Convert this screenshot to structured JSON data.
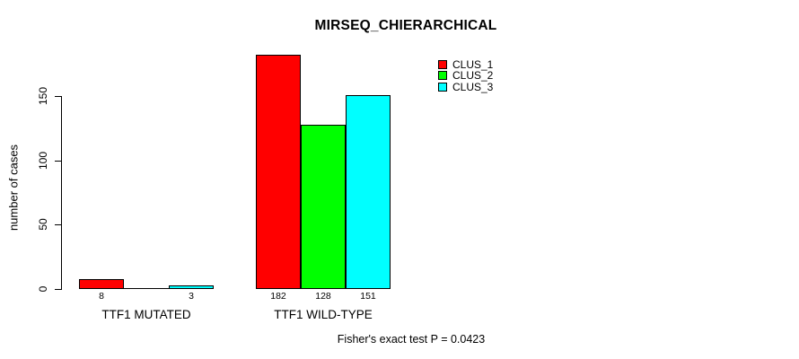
{
  "title": "MIRSEQ_CHIERARCHICAL",
  "y_axis": {
    "label": "number of cases"
  },
  "footer_note": "Fisher's exact test P = 0.0423",
  "colors": {
    "background": "#FFFFFF",
    "axis": "#000000",
    "text": "#000000",
    "clus_1": "#FF0000",
    "clus_2": "#00FF00",
    "clus_3": "#00FFFF"
  },
  "legend": {
    "items": [
      {
        "label": "CLUS_1",
        "color": "#FF0000"
      },
      {
        "label": "CLUS_2",
        "color": "#00FF00"
      },
      {
        "label": "CLUS_3",
        "color": "#00FFFF"
      }
    ]
  },
  "chart_data": {
    "type": "bar",
    "grouped": true,
    "title": "MIRSEQ_CHIERARCHICAL",
    "xlabel": "",
    "ylabel": "number of cases",
    "categories": [
      "TTF1 MUTATED",
      "TTF1 WILD-TYPE"
    ],
    "series": [
      {
        "name": "CLUS_1",
        "color": "#FF0000",
        "values": [
          8,
          182
        ]
      },
      {
        "name": "CLUS_2",
        "color": "#00FF00",
        "values": [
          0,
          128
        ]
      },
      {
        "name": "CLUS_3",
        "color": "#00FFFF",
        "values": [
          3,
          151
        ]
      }
    ],
    "bar_value_labels": [
      [
        "8",
        "",
        "3"
      ],
      [
        "182",
        "128",
        "151"
      ]
    ],
    "yticks": [
      0,
      50,
      100,
      150
    ],
    "ylim": [
      0,
      150
    ],
    "grid": false,
    "legend_position": "top-right",
    "annotation": "Fisher's exact test P = 0.0423"
  }
}
